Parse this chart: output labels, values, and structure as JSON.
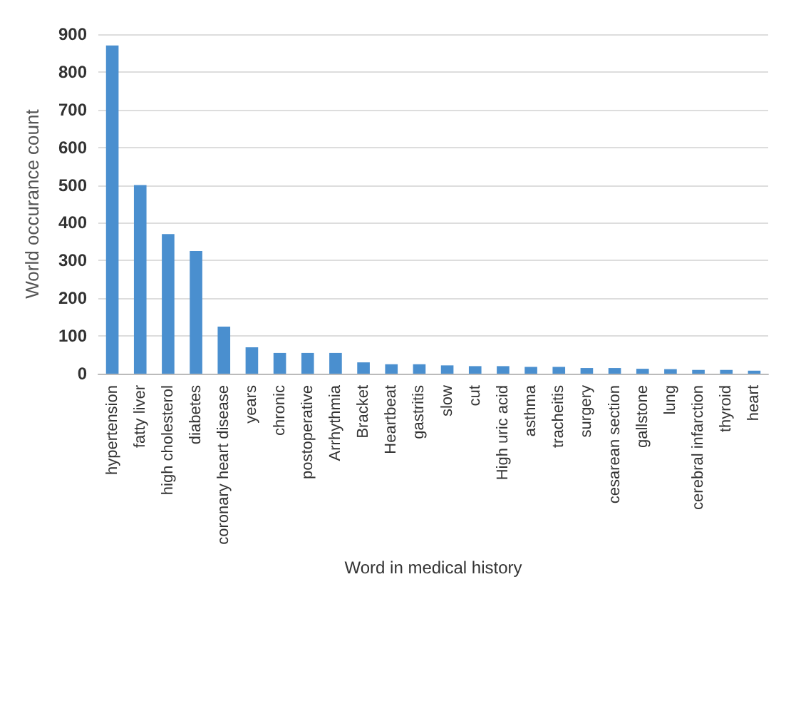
{
  "chart_data": {
    "type": "bar",
    "xlabel": "Word in medical history",
    "ylabel": "World occurance count",
    "categories": [
      "hypertension",
      "fatty liver",
      "high cholesterol",
      "diabetes",
      "coronary heart disease",
      "years",
      "chronic",
      "postoperative",
      "Arrhythmia",
      "Bracket",
      "Heartbeat",
      "gastritis",
      "slow",
      "cut",
      "High uric acid",
      "asthma",
      "tracheitis",
      "surgery",
      "cesarean section",
      "gallstone",
      "lung",
      "cerebral infarction",
      "thyroid",
      "heart"
    ],
    "values": [
      870,
      500,
      370,
      325,
      125,
      70,
      55,
      55,
      55,
      30,
      25,
      25,
      22,
      20,
      20,
      18,
      18,
      15,
      15,
      13,
      12,
      10,
      10,
      8
    ],
    "color": "#4a8fcf",
    "ylim": [
      0,
      900
    ],
    "yticks": [
      0,
      100,
      200,
      300,
      400,
      500,
      600,
      700,
      800,
      900
    ],
    "grid": "y"
  }
}
